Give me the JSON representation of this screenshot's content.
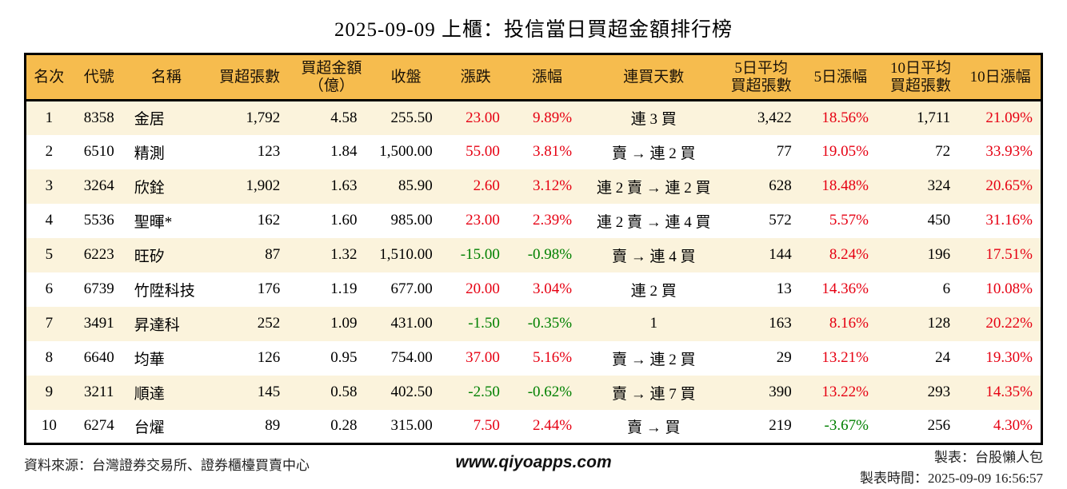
{
  "title": "2025-09-09 上櫃：投信當日買超金額排行榜",
  "colors": {
    "header_bg": "#F6BC4E",
    "row_alt_bg": "#FBF3DC",
    "up_red": "#E60012",
    "down_green": "#008000",
    "border": "#000000"
  },
  "chart_data": {
    "type": "table",
    "title": "2025-09-09 上櫃：投信當日買超金額排行榜",
    "columns": [
      {
        "label": "名次"
      },
      {
        "label": "代號"
      },
      {
        "label": "名稱"
      },
      {
        "label": "買超張數"
      },
      {
        "label": "買超金額",
        "sub": "（億）"
      },
      {
        "label": "收盤"
      },
      {
        "label": "漲跌"
      },
      {
        "label": "漲幅"
      },
      {
        "label": "連買天數"
      },
      {
        "label": "5日平均",
        "sub": "買超張數"
      },
      {
        "label": "5日漲幅"
      },
      {
        "label": "10日平均",
        "sub": "買超張數"
      },
      {
        "label": "10日漲幅"
      }
    ],
    "rows": [
      [
        "1",
        "8358",
        "金居",
        "1,792",
        "4.58",
        "255.50",
        "23.00",
        "9.89%",
        "連 3 買",
        "3,422",
        "18.56%",
        "1,711",
        "21.09%"
      ],
      [
        "2",
        "6510",
        "精測",
        "123",
        "1.84",
        "1,500.00",
        "55.00",
        "3.81%",
        "賣 → 連 2 買",
        "77",
        "19.05%",
        "72",
        "33.93%"
      ],
      [
        "3",
        "3264",
        "欣銓",
        "1,902",
        "1.63",
        "85.90",
        "2.60",
        "3.12%",
        "連 2 賣 → 連 2 買",
        "628",
        "18.48%",
        "324",
        "20.65%"
      ],
      [
        "4",
        "5536",
        "聖暉*",
        "162",
        "1.60",
        "985.00",
        "23.00",
        "2.39%",
        "連 2 賣 → 連 4 買",
        "572",
        "5.57%",
        "450",
        "31.16%"
      ],
      [
        "5",
        "6223",
        "旺矽",
        "87",
        "1.32",
        "1,510.00",
        "-15.00",
        "-0.98%",
        "賣 → 連 4 買",
        "144",
        "8.24%",
        "196",
        "17.51%"
      ],
      [
        "6",
        "6739",
        "竹陞科技",
        "176",
        "1.19",
        "677.00",
        "20.00",
        "3.04%",
        "連 2 買",
        "13",
        "14.36%",
        "6",
        "10.08%"
      ],
      [
        "7",
        "3491",
        "昇達科",
        "252",
        "1.09",
        "431.00",
        "-1.50",
        "-0.35%",
        "1",
        "163",
        "8.16%",
        "128",
        "20.22%"
      ],
      [
        "8",
        "6640",
        "均華",
        "126",
        "0.95",
        "754.00",
        "37.00",
        "5.16%",
        "賣 → 連 2 買",
        "29",
        "13.21%",
        "24",
        "19.30%"
      ],
      [
        "9",
        "3211",
        "順達",
        "145",
        "0.58",
        "402.50",
        "-2.50",
        "-0.62%",
        "賣 → 連 7 買",
        "390",
        "13.22%",
        "293",
        "14.35%"
      ],
      [
        "10",
        "6274",
        "台燿",
        "89",
        "0.28",
        "315.00",
        "7.50",
        "2.44%",
        "賣 → 買",
        "219",
        "-3.67%",
        "256",
        "4.30%"
      ]
    ]
  },
  "footer": {
    "source": "資料來源：台灣證券交易所、證券櫃檯買賣中心",
    "website": "www.qiyoapps.com",
    "maker": "製表：台股懶人包",
    "made_time": "製表時間：2025-09-09 16:56:57"
  }
}
